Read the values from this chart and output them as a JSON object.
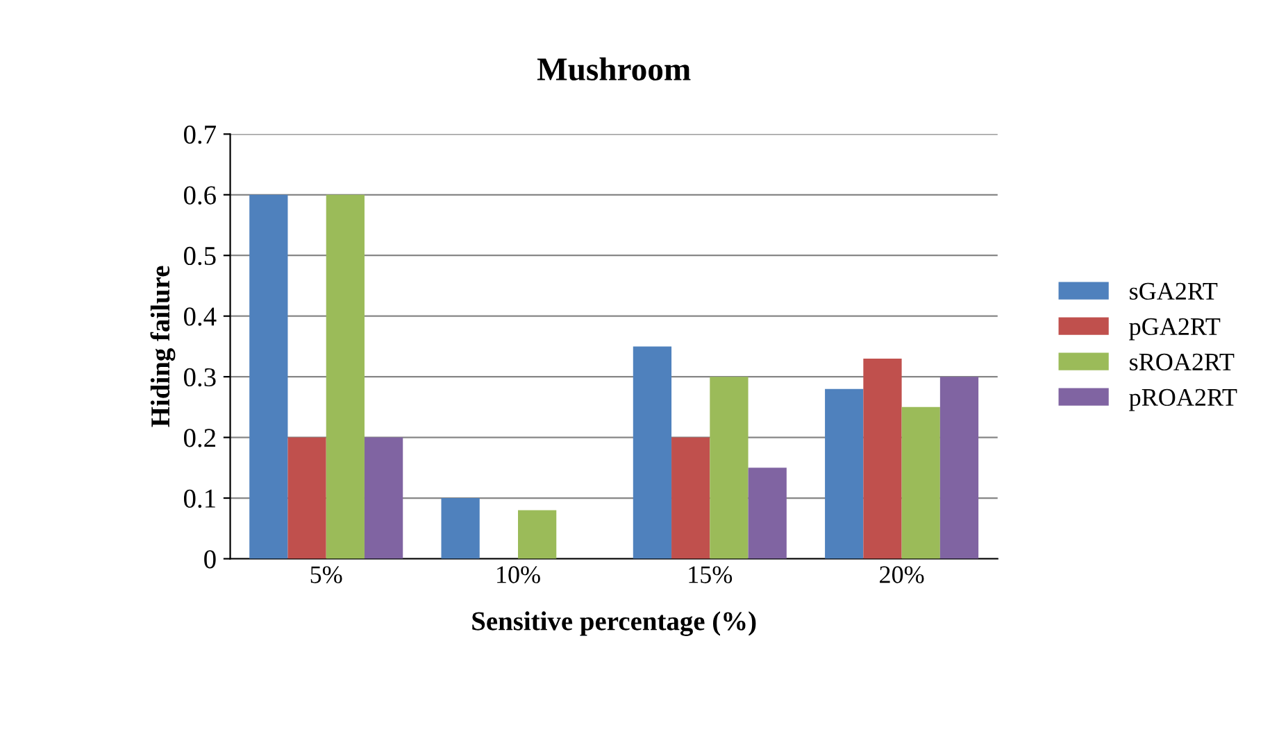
{
  "chart_data": {
    "type": "bar",
    "title": "Mushroom",
    "xlabel": "Sensitive percentage (%)",
    "ylabel": "Hiding failure",
    "categories": [
      "5%",
      "10%",
      "15%",
      "20%"
    ],
    "series": [
      {
        "name": "sGA2RT",
        "color": "#4f81bd",
        "values": [
          0.6,
          0.1,
          0.35,
          0.28
        ]
      },
      {
        "name": "pGA2RT",
        "color": "#c0504d",
        "values": [
          0.2,
          0,
          0.2,
          0.33
        ]
      },
      {
        "name": "sROA2RT",
        "color": "#9bbb59",
        "values": [
          0.6,
          0.08,
          0.3,
          0.25
        ]
      },
      {
        "name": "pROA2RT",
        "color": "#8064a2",
        "values": [
          0.2,
          0,
          0.15,
          0.3
        ]
      }
    ],
    "ylim": [
      0,
      0.7
    ],
    "yticks": [
      0,
      0.1,
      0.2,
      0.3,
      0.4,
      0.5,
      0.6,
      0.7
    ],
    "grid": "y",
    "legend": "right"
  }
}
